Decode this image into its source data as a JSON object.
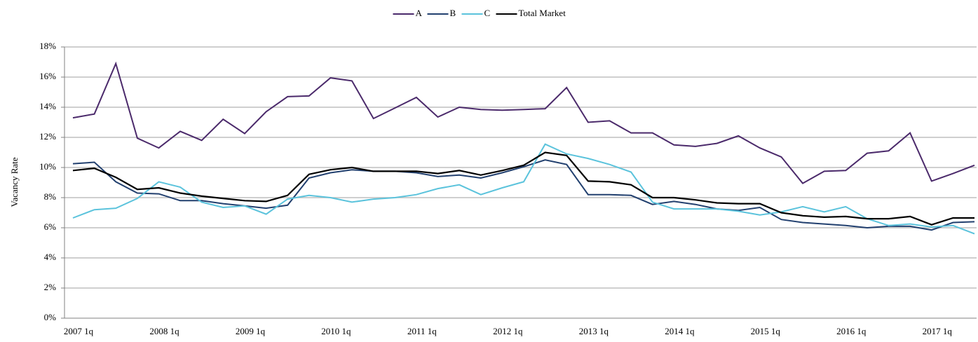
{
  "chart_data": {
    "type": "line",
    "y_label": "Vacancy Rate",
    "categories": [
      "2007 1q",
      null,
      null,
      null,
      "2008 1q",
      null,
      null,
      null,
      "2009 1q",
      null,
      null,
      null,
      "2010 1q",
      null,
      null,
      null,
      "2011 1q",
      null,
      null,
      null,
      "2012 1q",
      null,
      null,
      null,
      "2013 1q",
      null,
      null,
      null,
      "2014 1q",
      null,
      null,
      null,
      "2015 1q",
      null,
      null,
      null,
      "2016 1q",
      null,
      null,
      null,
      "2017 1q",
      null,
      null
    ],
    "series": [
      {
        "name": "A",
        "color": "#4b2a6b",
        "values": [
          13.3,
          13.55,
          16.9,
          11.95,
          11.3,
          12.4,
          11.8,
          13.2,
          12.25,
          13.7,
          14.7,
          14.75,
          15.95,
          15.75,
          13.25,
          13.95,
          14.65,
          13.35,
          14.0,
          13.85,
          13.8,
          13.85,
          13.9,
          15.3,
          13.0,
          13.1,
          12.3,
          12.3,
          11.5,
          11.4,
          11.6,
          12.1,
          11.3,
          10.7,
          8.95,
          9.75,
          9.8,
          10.95,
          11.1,
          12.3,
          9.1,
          9.6,
          10.15
        ]
      },
      {
        "name": "B",
        "color": "#22406f",
        "values": [
          10.25,
          10.35,
          9.05,
          8.3,
          8.25,
          7.8,
          7.8,
          7.6,
          7.45,
          7.3,
          7.5,
          9.3,
          9.65,
          9.85,
          9.75,
          9.75,
          9.65,
          9.4,
          9.5,
          9.3,
          9.65,
          10.05,
          10.5,
          10.2,
          8.2,
          8.2,
          8.15,
          7.55,
          7.75,
          7.55,
          7.25,
          7.15,
          7.35,
          6.55,
          6.35,
          6.25,
          6.15,
          6.0,
          6.1,
          6.1,
          5.85,
          6.35,
          6.4
        ]
      },
      {
        "name": "C",
        "color": "#5bc3dc",
        "values": [
          6.65,
          7.2,
          7.3,
          7.95,
          9.05,
          8.7,
          7.7,
          7.35,
          7.45,
          6.9,
          7.9,
          8.15,
          8.0,
          7.7,
          7.9,
          8.0,
          8.2,
          8.6,
          8.85,
          8.2,
          8.65,
          9.05,
          11.55,
          10.9,
          10.6,
          10.2,
          9.7,
          7.7,
          7.25,
          7.25,
          7.25,
          7.1,
          6.85,
          7.05,
          7.4,
          7.05,
          7.4,
          6.6,
          6.15,
          6.25,
          6.05,
          6.15,
          5.6
        ]
      },
      {
        "name": "Total Market",
        "color": "#000000",
        "values": [
          9.8,
          9.95,
          9.35,
          8.55,
          8.65,
          8.3,
          8.1,
          7.95,
          7.8,
          7.75,
          8.15,
          9.55,
          9.85,
          10.0,
          9.75,
          9.75,
          9.75,
          9.6,
          9.8,
          9.5,
          9.8,
          10.15,
          11.0,
          10.8,
          9.1,
          9.05,
          8.85,
          8.0,
          8.0,
          7.85,
          7.65,
          7.6,
          7.6,
          7.0,
          6.8,
          6.7,
          6.75,
          6.6,
          6.6,
          6.75,
          6.2,
          6.65,
          6.65
        ]
      }
    ],
    "ylim": [
      0,
      18
    ],
    "yticks": [
      {
        "value": 0,
        "label": "0%"
      },
      {
        "value": 2,
        "label": "2%"
      },
      {
        "value": 4,
        "label": "4%"
      },
      {
        "value": 6,
        "label": "6%"
      },
      {
        "value": 8,
        "label": "8%"
      },
      {
        "value": 10,
        "label": "10%"
      },
      {
        "value": 12,
        "label": "12%"
      },
      {
        "value": 14,
        "label": "14%"
      },
      {
        "value": 16,
        "label": "16%"
      },
      {
        "value": 18,
        "label": "18%"
      }
    ],
    "grid": true,
    "legend": "top"
  }
}
